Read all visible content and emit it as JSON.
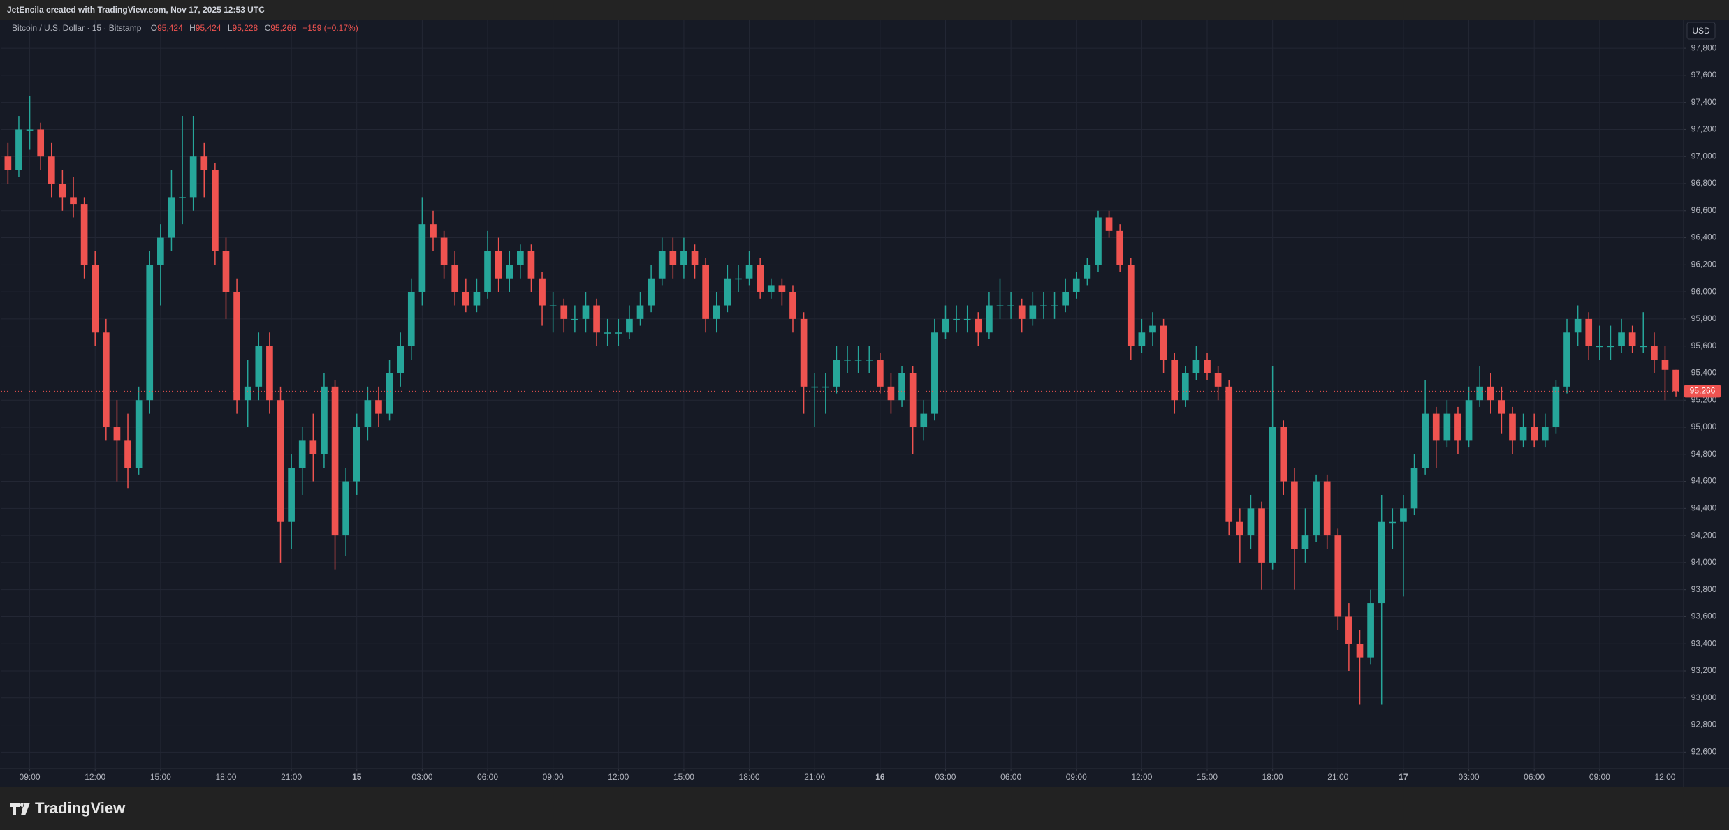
{
  "attribution": "JetEncila created with TradingView.com, Nov 17, 2025 12:53 UTC",
  "brand": "TradingView",
  "chart_data": {
    "type": "candlestick",
    "title": "Bitcoin / U.S. Dollar · 15 · Bitstamp",
    "ohlc_legend": [
      {
        "label": "O",
        "text": "95,424"
      },
      {
        "label": "H",
        "text": "95,424"
      },
      {
        "label": "L",
        "text": "95,228"
      },
      {
        "label": "C",
        "text": "95,266"
      }
    ],
    "change": "−159 (−0.17%)",
    "currency": "USD",
    "up_color": "#26a69a",
    "down_color": "#ef5350",
    "grid": true,
    "last_price": {
      "value": 95266,
      "label": "95,266"
    },
    "xlim": [
      -0.6,
      153.7
    ],
    "xticks": [
      {
        "value": 2,
        "label": "09:00"
      },
      {
        "value": 8,
        "label": "12:00"
      },
      {
        "value": 14,
        "label": "15:00"
      },
      {
        "value": 20,
        "label": "18:00"
      },
      {
        "value": 26,
        "label": "21:00"
      },
      {
        "value": 32,
        "label": "15"
      },
      {
        "value": 38,
        "label": "03:00"
      },
      {
        "value": 44,
        "label": "06:00"
      },
      {
        "value": 50,
        "label": "09:00"
      },
      {
        "value": 56,
        "label": "12:00"
      },
      {
        "value": 62,
        "label": "15:00"
      },
      {
        "value": 68,
        "label": "18:00"
      },
      {
        "value": 74,
        "label": "21:00"
      },
      {
        "value": 80,
        "label": "16"
      },
      {
        "value": 86,
        "label": "03:00"
      },
      {
        "value": 92,
        "label": "06:00"
      },
      {
        "value": 98,
        "label": "09:00"
      },
      {
        "value": 104,
        "label": "12:00"
      },
      {
        "value": 110,
        "label": "15:00"
      },
      {
        "value": 116,
        "label": "18:00"
      },
      {
        "value": 122,
        "label": "21:00"
      },
      {
        "value": 128,
        "label": "17"
      },
      {
        "value": 134,
        "label": "03:00"
      },
      {
        "value": 140,
        "label": "06:00"
      },
      {
        "value": 146,
        "label": "09:00"
      },
      {
        "value": 152,
        "label": "12:00"
      }
    ],
    "ylim": [
      92478,
      98012
    ],
    "yticks": [
      {
        "value": 92600,
        "label": "92,600"
      },
      {
        "value": 92800,
        "label": "92,800"
      },
      {
        "value": 93000,
        "label": "93,000"
      },
      {
        "value": 93200,
        "label": "93,200"
      },
      {
        "value": 93400,
        "label": "93,400"
      },
      {
        "value": 93600,
        "label": "93,600"
      },
      {
        "value": 93800,
        "label": "93,800"
      },
      {
        "value": 94000,
        "label": "94,000"
      },
      {
        "value": 94200,
        "label": "94,200"
      },
      {
        "value": 94400,
        "label": "94,400"
      },
      {
        "value": 94600,
        "label": "94,600"
      },
      {
        "value": 94800,
        "label": "94,800"
      },
      {
        "value": 95000,
        "label": "95,000"
      },
      {
        "value": 95200,
        "label": "95,200"
      },
      {
        "value": 95400,
        "label": "95,400"
      },
      {
        "value": 95600,
        "label": "95,600"
      },
      {
        "value": 95800,
        "label": "95,800"
      },
      {
        "value": 96000,
        "label": "96,000"
      },
      {
        "value": 96200,
        "label": "96,200"
      },
      {
        "value": 96400,
        "label": "96,400"
      },
      {
        "value": 96600,
        "label": "96,600"
      },
      {
        "value": 96800,
        "label": "96,800"
      },
      {
        "value": 97000,
        "label": "97,000"
      },
      {
        "value": 97200,
        "label": "97,200"
      },
      {
        "value": 97400,
        "label": "97,400"
      },
      {
        "value": 97600,
        "label": "97,600"
      },
      {
        "value": 97800,
        "label": "97,800"
      }
    ],
    "candles": [
      [
        97000,
        97100,
        96800,
        96900
      ],
      [
        96900,
        97300,
        96850,
        97200
      ],
      [
        97200,
        97450,
        97050,
        97200
      ],
      [
        97200,
        97250,
        96900,
        97000
      ],
      [
        97000,
        97100,
        96700,
        96800
      ],
      [
        96800,
        96900,
        96600,
        96700
      ],
      [
        96700,
        96850,
        96550,
        96650
      ],
      [
        96650,
        96700,
        96100,
        96200
      ],
      [
        96200,
        96300,
        95600,
        95700
      ],
      [
        95700,
        95800,
        94900,
        95000
      ],
      [
        95000,
        95200,
        94600,
        94900
      ],
      [
        94900,
        95100,
        94550,
        94700
      ],
      [
        94700,
        95300,
        94650,
        95200
      ],
      [
        95200,
        96300,
        95100,
        96200
      ],
      [
        96200,
        96500,
        95900,
        96400
      ],
      [
        96400,
        96900,
        96300,
        96700
      ],
      [
        96700,
        97300,
        96500,
        96700
      ],
      [
        96700,
        97300,
        96600,
        97000
      ],
      [
        97000,
        97100,
        96700,
        96900
      ],
      [
        96900,
        96950,
        96200,
        96300
      ],
      [
        96300,
        96400,
        95800,
        96000
      ],
      [
        96000,
        96100,
        95100,
        95200
      ],
      [
        95200,
        95500,
        95000,
        95300
      ],
      [
        95300,
        95700,
        95200,
        95600
      ],
      [
        95600,
        95700,
        95100,
        95200
      ],
      [
        95200,
        95300,
        94000,
        94300
      ],
      [
        94300,
        94800,
        94100,
        94700
      ],
      [
        94700,
        95000,
        94500,
        94900
      ],
      [
        94900,
        95100,
        94600,
        94800
      ],
      [
        94800,
        95400,
        94700,
        95300
      ],
      [
        95300,
        95350,
        93950,
        94200
      ],
      [
        94200,
        94700,
        94050,
        94600
      ],
      [
        94600,
        95100,
        94500,
        95000
      ],
      [
        95000,
        95300,
        94900,
        95200
      ],
      [
        95200,
        95300,
        95000,
        95100
      ],
      [
        95100,
        95500,
        95050,
        95400
      ],
      [
        95400,
        95700,
        95300,
        95600
      ],
      [
        95600,
        96100,
        95500,
        96000
      ],
      [
        96000,
        96700,
        95900,
        96500
      ],
      [
        96500,
        96600,
        96300,
        96400
      ],
      [
        96400,
        96450,
        96100,
        96200
      ],
      [
        96200,
        96300,
        95900,
        96000
      ],
      [
        96000,
        96100,
        95850,
        95900
      ],
      [
        95900,
        96100,
        95850,
        96000
      ],
      [
        96000,
        96450,
        95950,
        96300
      ],
      [
        96300,
        96400,
        96000,
        96100
      ],
      [
        96100,
        96300,
        96000,
        96200
      ],
      [
        96200,
        96350,
        96100,
        96300
      ],
      [
        96300,
        96350,
        96000,
        96100
      ],
      [
        96100,
        96150,
        95750,
        95900
      ],
      [
        95900,
        96000,
        95700,
        95900
      ],
      [
        95900,
        95950,
        95700,
        95800
      ],
      [
        95800,
        95900,
        95700,
        95800
      ],
      [
        95800,
        96000,
        95700,
        95900
      ],
      [
        95900,
        95950,
        95600,
        95700
      ],
      [
        95700,
        95800,
        95600,
        95700
      ],
      [
        95700,
        95800,
        95600,
        95700
      ],
      [
        95700,
        95900,
        95650,
        95800
      ],
      [
        95800,
        96000,
        95750,
        95900
      ],
      [
        95900,
        96200,
        95850,
        96100
      ],
      [
        96100,
        96400,
        96050,
        96300
      ],
      [
        96300,
        96400,
        96100,
        96200
      ],
      [
        96200,
        96400,
        96100,
        96300
      ],
      [
        96300,
        96350,
        96100,
        96200
      ],
      [
        96200,
        96250,
        95700,
        95800
      ],
      [
        95800,
        96000,
        95700,
        95900
      ],
      [
        95900,
        96200,
        95850,
        96100
      ],
      [
        96100,
        96200,
        96000,
        96100
      ],
      [
        96100,
        96300,
        96050,
        96200
      ],
      [
        96200,
        96250,
        95950,
        96000
      ],
      [
        96000,
        96100,
        95950,
        96050
      ],
      [
        96050,
        96100,
        95900,
        96000
      ],
      [
        96000,
        96050,
        95700,
        95800
      ],
      [
        95800,
        95850,
        95100,
        95300
      ],
      [
        95300,
        95400,
        95000,
        95300
      ],
      [
        95300,
        95400,
        95100,
        95300
      ],
      [
        95300,
        95600,
        95250,
        95500
      ],
      [
        95500,
        95600,
        95400,
        95500
      ],
      [
        95500,
        95600,
        95400,
        95500
      ],
      [
        95500,
        95600,
        95400,
        95500
      ],
      [
        95500,
        95550,
        95250,
        95300
      ],
      [
        95300,
        95400,
        95100,
        95200
      ],
      [
        95200,
        95450,
        95150,
        95400
      ],
      [
        95400,
        95450,
        94800,
        95000
      ],
      [
        95000,
        95200,
        94900,
        95100
      ],
      [
        95100,
        95800,
        95050,
        95700
      ],
      [
        95700,
        95900,
        95650,
        95800
      ],
      [
        95800,
        95900,
        95700,
        95800
      ],
      [
        95800,
        95900,
        95700,
        95800
      ],
      [
        95800,
        95850,
        95600,
        95700
      ],
      [
        95700,
        96000,
        95650,
        95900
      ],
      [
        95900,
        96100,
        95800,
        95900
      ],
      [
        95900,
        96000,
        95800,
        95900
      ],
      [
        95900,
        95950,
        95700,
        95800
      ],
      [
        95800,
        96000,
        95750,
        95900
      ],
      [
        95900,
        96000,
        95800,
        95900
      ],
      [
        95900,
        96000,
        95800,
        95900
      ],
      [
        95900,
        96100,
        95850,
        96000
      ],
      [
        96000,
        96150,
        95950,
        96100
      ],
      [
        96100,
        96250,
        96050,
        96200
      ],
      [
        96200,
        96600,
        96150,
        96550
      ],
      [
        96550,
        96600,
        96400,
        96450
      ],
      [
        96450,
        96500,
        96150,
        96200
      ],
      [
        96200,
        96250,
        95500,
        95600
      ],
      [
        95600,
        95800,
        95550,
        95700
      ],
      [
        95700,
        95850,
        95600,
        95750
      ],
      [
        95750,
        95800,
        95400,
        95500
      ],
      [
        95500,
        95550,
        95100,
        95200
      ],
      [
        95200,
        95450,
        95150,
        95400
      ],
      [
        95400,
        95600,
        95350,
        95500
      ],
      [
        95500,
        95550,
        95350,
        95400
      ],
      [
        95400,
        95450,
        95200,
        95300
      ],
      [
        95300,
        95350,
        94200,
        94300
      ],
      [
        94300,
        94400,
        94000,
        94200
      ],
      [
        94200,
        94500,
        94100,
        94400
      ],
      [
        94400,
        94450,
        93800,
        94000
      ],
      [
        94000,
        95450,
        93950,
        95000
      ],
      [
        95000,
        95050,
        94500,
        94600
      ],
      [
        94600,
        94700,
        93800,
        94100
      ],
      [
        94100,
        94400,
        94000,
        94200
      ],
      [
        94200,
        94650,
        94150,
        94600
      ],
      [
        94600,
        94650,
        94100,
        94200
      ],
      [
        94200,
        94250,
        93500,
        93600
      ],
      [
        93600,
        93700,
        93200,
        93400
      ],
      [
        93400,
        93500,
        92950,
        93300
      ],
      [
        93300,
        93800,
        93250,
        93700
      ],
      [
        93700,
        94500,
        92950,
        94300
      ],
      [
        94300,
        94400,
        94100,
        94300
      ],
      [
        94300,
        94500,
        93750,
        94400
      ],
      [
        94400,
        94800,
        94350,
        94700
      ],
      [
        94700,
        95350,
        94650,
        95100
      ],
      [
        95100,
        95150,
        94700,
        94900
      ],
      [
        94900,
        95200,
        94850,
        95100
      ],
      [
        95100,
        95150,
        94800,
        94900
      ],
      [
        94900,
        95300,
        94850,
        95200
      ],
      [
        95200,
        95450,
        95150,
        95300
      ],
      [
        95300,
        95400,
        95100,
        95200
      ],
      [
        95200,
        95300,
        94950,
        95100
      ],
      [
        95100,
        95150,
        94800,
        94900
      ],
      [
        94900,
        95100,
        94850,
        95000
      ],
      [
        95000,
        95100,
        94850,
        94900
      ],
      [
        94900,
        95100,
        94850,
        95000
      ],
      [
        95000,
        95350,
        94950,
        95300
      ],
      [
        95300,
        95800,
        95250,
        95700
      ],
      [
        95700,
        95900,
        95600,
        95800
      ],
      [
        95800,
        95850,
        95500,
        95600
      ],
      [
        95600,
        95750,
        95500,
        95600
      ],
      [
        95600,
        95750,
        95500,
        95600
      ],
      [
        95600,
        95800,
        95550,
        95700
      ],
      [
        95700,
        95750,
        95550,
        95600
      ],
      [
        95600,
        95850,
        95550,
        95600
      ],
      [
        95600,
        95700,
        95400,
        95500
      ],
      [
        95500,
        95600,
        95200,
        95424
      ],
      [
        95424,
        95424,
        95228,
        95266
      ]
    ]
  }
}
